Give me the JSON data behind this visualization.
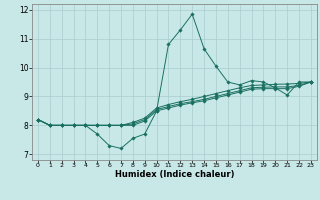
{
  "title": "",
  "xlabel": "Humidex (Indice chaleur)",
  "bg_color": "#c8e8e8",
  "line_color": "#1a7060",
  "marker_color": "#1a7060",
  "grid_color": "#aacccc",
  "spine_color": "#888888",
  "xlim": [
    -0.5,
    23.5
  ],
  "ylim": [
    6.8,
    12.2
  ],
  "xticks": [
    0,
    1,
    2,
    3,
    4,
    5,
    6,
    7,
    8,
    9,
    10,
    11,
    12,
    13,
    14,
    15,
    16,
    17,
    18,
    19,
    20,
    21,
    22,
    23
  ],
  "yticks": [
    7,
    8,
    9,
    10,
    11,
    12
  ],
  "lines": [
    [
      8.2,
      8.0,
      8.0,
      8.0,
      8.0,
      7.7,
      7.3,
      7.2,
      7.55,
      7.7,
      8.5,
      10.8,
      11.3,
      11.85,
      10.65,
      10.05,
      9.5,
      9.4,
      9.55,
      9.5,
      9.3,
      9.05,
      9.5,
      9.5
    ],
    [
      8.2,
      8.0,
      8.0,
      8.0,
      8.0,
      8.0,
      8.0,
      8.0,
      8.1,
      8.25,
      8.6,
      8.72,
      8.82,
      8.9,
      9.0,
      9.1,
      9.2,
      9.3,
      9.38,
      9.4,
      9.42,
      9.43,
      9.45,
      9.5
    ],
    [
      8.2,
      8.0,
      8.0,
      8.0,
      8.0,
      8.0,
      8.0,
      8.0,
      8.05,
      8.2,
      8.55,
      8.65,
      8.75,
      8.82,
      8.9,
      9.0,
      9.1,
      9.2,
      9.3,
      9.32,
      9.33,
      9.33,
      9.38,
      9.5
    ],
    [
      8.2,
      8.0,
      8.0,
      8.0,
      8.0,
      8.0,
      8.0,
      8.0,
      8.0,
      8.15,
      8.5,
      8.6,
      8.7,
      8.78,
      8.85,
      8.95,
      9.05,
      9.15,
      9.25,
      9.27,
      9.27,
      9.27,
      9.35,
      9.5
    ]
  ]
}
